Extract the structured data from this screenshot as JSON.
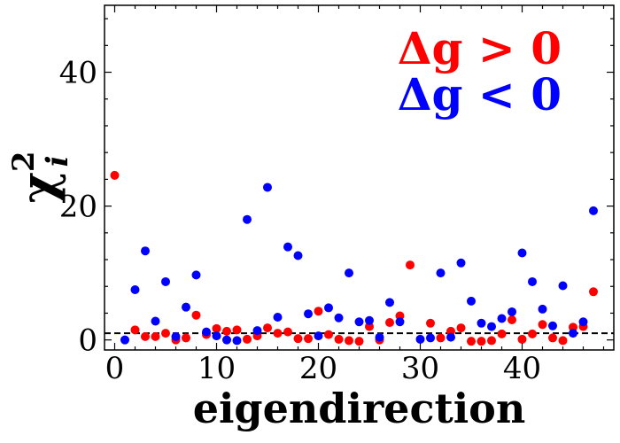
{
  "chart_data": {
    "type": "scatter",
    "xlabel": "eigendirection",
    "ylabel_base": "χ",
    "ylabel_sup": "2",
    "ylabel_sub": "i",
    "xlim": [
      -1,
      49
    ],
    "ylim": [
      -1.5,
      50
    ],
    "xticks": [
      0,
      10,
      20,
      30,
      40
    ],
    "yticks": [
      0,
      20,
      40
    ],
    "reference_line": {
      "y": 1,
      "style": "dashed",
      "color": "#000000"
    },
    "legend": {
      "placement": "top-right",
      "entries": [
        {
          "text": "Δg > 0",
          "color": "#ff0000"
        },
        {
          "text": "Δg < 0",
          "color": "#0000ff"
        }
      ]
    },
    "grid": false,
    "series": [
      {
        "name": "Δg > 0",
        "color": "#ff0000",
        "points": [
          [
            0,
            24.6
          ],
          [
            2,
            1.5
          ],
          [
            3,
            0.5
          ],
          [
            4,
            0.5
          ],
          [
            5,
            1.0
          ],
          [
            6,
            0.0
          ],
          [
            7,
            0.3
          ],
          [
            8,
            3.7
          ],
          [
            9,
            0.8
          ],
          [
            10,
            1.7
          ],
          [
            11,
            1.3
          ],
          [
            12,
            1.5
          ],
          [
            13,
            0.1
          ],
          [
            14,
            0.6
          ],
          [
            15,
            1.8
          ],
          [
            16,
            1.0
          ],
          [
            17,
            1.2
          ],
          [
            18,
            0.2
          ],
          [
            19,
            0.2
          ],
          [
            20,
            4.3
          ],
          [
            21,
            0.8
          ],
          [
            22,
            0.1
          ],
          [
            23,
            -0.1
          ],
          [
            24,
            -0.2
          ],
          [
            25,
            2.0
          ],
          [
            26,
            0.0
          ],
          [
            27,
            2.6
          ],
          [
            28,
            3.6
          ],
          [
            29,
            11.2
          ],
          [
            31,
            2.5
          ],
          [
            32,
            0.3
          ],
          [
            33,
            1.3
          ],
          [
            34,
            1.8
          ],
          [
            35,
            -0.2
          ],
          [
            36,
            -0.2
          ],
          [
            37,
            -0.1
          ],
          [
            38,
            0.9
          ],
          [
            39,
            3.0
          ],
          [
            40,
            0.1
          ],
          [
            41,
            0.9
          ],
          [
            42,
            2.3
          ],
          [
            43,
            0.3
          ],
          [
            44,
            -0.1
          ],
          [
            45,
            1.9
          ],
          [
            46,
            2.0
          ],
          [
            47,
            7.2
          ]
        ]
      },
      {
        "name": "Δg < 0",
        "color": "#0000ff",
        "points": [
          [
            1,
            0.0
          ],
          [
            2,
            7.5
          ],
          [
            3,
            13.3
          ],
          [
            4,
            2.8
          ],
          [
            5,
            8.7
          ],
          [
            6,
            0.5
          ],
          [
            7,
            4.9
          ],
          [
            8,
            9.7
          ],
          [
            9,
            1.2
          ],
          [
            10,
            0.6
          ],
          [
            11,
            0.0
          ],
          [
            12,
            -0.1
          ],
          [
            13,
            18.0
          ],
          [
            14,
            1.4
          ],
          [
            15,
            22.8
          ],
          [
            16,
            3.4
          ],
          [
            17,
            13.9
          ],
          [
            18,
            12.6
          ],
          [
            19,
            3.9
          ],
          [
            20,
            0.6
          ],
          [
            21,
            4.8
          ],
          [
            22,
            3.3
          ],
          [
            23,
            10.0
          ],
          [
            24,
            2.7
          ],
          [
            25,
            2.9
          ],
          [
            26,
            0.4
          ],
          [
            27,
            5.6
          ],
          [
            28,
            2.7
          ],
          [
            30,
            0.1
          ],
          [
            31,
            0.3
          ],
          [
            32,
            10.0
          ],
          [
            33,
            0.4
          ],
          [
            34,
            11.5
          ],
          [
            35,
            5.8
          ],
          [
            36,
            2.5
          ],
          [
            37,
            2.0
          ],
          [
            38,
            3.2
          ],
          [
            39,
            4.2
          ],
          [
            40,
            13.0
          ],
          [
            41,
            8.7
          ],
          [
            42,
            4.6
          ],
          [
            43,
            2.1
          ],
          [
            44,
            8.1
          ],
          [
            45,
            1.0
          ],
          [
            46,
            2.7
          ],
          [
            47,
            19.3
          ]
        ]
      }
    ]
  }
}
